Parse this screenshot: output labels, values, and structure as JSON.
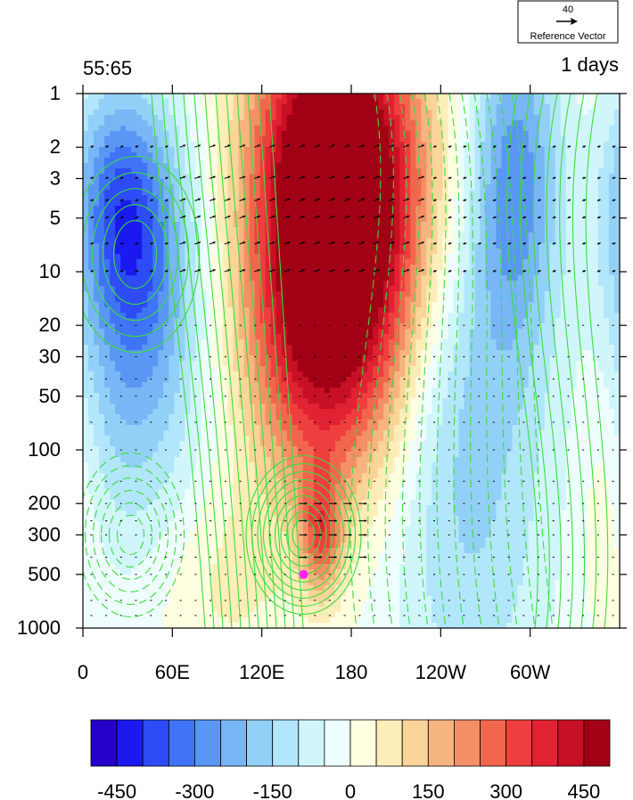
{
  "chart_data": {
    "type": "heatmap",
    "title_left": "55:65",
    "title_right": "1 days",
    "reference_vector": {
      "value": "40",
      "label": "Reference Vector"
    },
    "x_ticks": [
      "0",
      "60E",
      "120E",
      "180",
      "120W",
      "60W"
    ],
    "x_tick_values": [
      0,
      60,
      120,
      180,
      240,
      300
    ],
    "x_range": [
      0,
      360
    ],
    "y_ticks": [
      "1",
      "2",
      "3",
      "5",
      "10",
      "20",
      "30",
      "50",
      "100",
      "200",
      "300",
      "500",
      "1000"
    ],
    "y_tick_values": [
      1,
      2,
      3,
      5,
      10,
      20,
      30,
      50,
      100,
      200,
      300,
      500,
      1000
    ],
    "y_range": [
      1,
      1000
    ],
    "y_scale": "log, reversed (pressure)",
    "colorbar": {
      "labels": [
        "-450",
        "-300",
        "-150",
        "0",
        "150",
        "300",
        "450"
      ],
      "label_values": [
        -450,
        -300,
        -150,
        0,
        150,
        300,
        450
      ],
      "levels": [
        -500,
        -450,
        -400,
        -350,
        -300,
        -250,
        -200,
        -150,
        -100,
        -50,
        0,
        50,
        100,
        150,
        200,
        250,
        300,
        350,
        400,
        450,
        500
      ],
      "colors": [
        "#2600c8",
        "#1a1af0",
        "#2d4cf5",
        "#3f74f6",
        "#5a97f5",
        "#78b6f5",
        "#93d0f7",
        "#b2e6fb",
        "#d0f6fc",
        "#eefefe",
        "#fefee0",
        "#fdedb9",
        "#fad499",
        "#f6b57f",
        "#f48f66",
        "#f3664e",
        "#ef3e3e",
        "#e12233",
        "#c71024",
        "#a10015"
      ]
    },
    "anomaly_blobs": [
      {
        "lon": 175,
        "p": 6,
        "value": 480,
        "sx": 40,
        "sy": 0.8
      },
      {
        "lon": 165,
        "p": 2,
        "value": 300,
        "sx": 35,
        "sy": 0.6
      },
      {
        "lon": 155,
        "p": 30,
        "value": 200,
        "sx": 35,
        "sy": 0.6
      },
      {
        "lon": 160,
        "p": 300,
        "value": 250,
        "sx": 10,
        "sy": 0.25
      },
      {
        "lon": 35,
        "p": 8,
        "value": -340,
        "sx": 28,
        "sy": 0.6
      },
      {
        "lon": 20,
        "p": 3,
        "value": -120,
        "sx": 20,
        "sy": 0.4
      },
      {
        "lon": 290,
        "p": 3,
        "value": -280,
        "sx": 22,
        "sy": 0.7
      },
      {
        "lon": 260,
        "p": 300,
        "value": -140,
        "sx": 40,
        "sy": 0.9
      },
      {
        "lon": 250,
        "p": 30,
        "value": -80,
        "sx": 30,
        "sy": 0.6
      },
      {
        "lon": 35,
        "p": 100,
        "value": -110,
        "sx": 40,
        "sy": 0.6
      },
      {
        "lon": 350,
        "p": 150,
        "value": 80,
        "sx": 15,
        "sy": 0.6
      },
      {
        "lon": 90,
        "p": 500,
        "value": 70,
        "sx": 30,
        "sy": 0.4
      }
    ],
    "marker": {
      "lon": 148,
      "p": 500,
      "color": "#ff22ff"
    }
  }
}
